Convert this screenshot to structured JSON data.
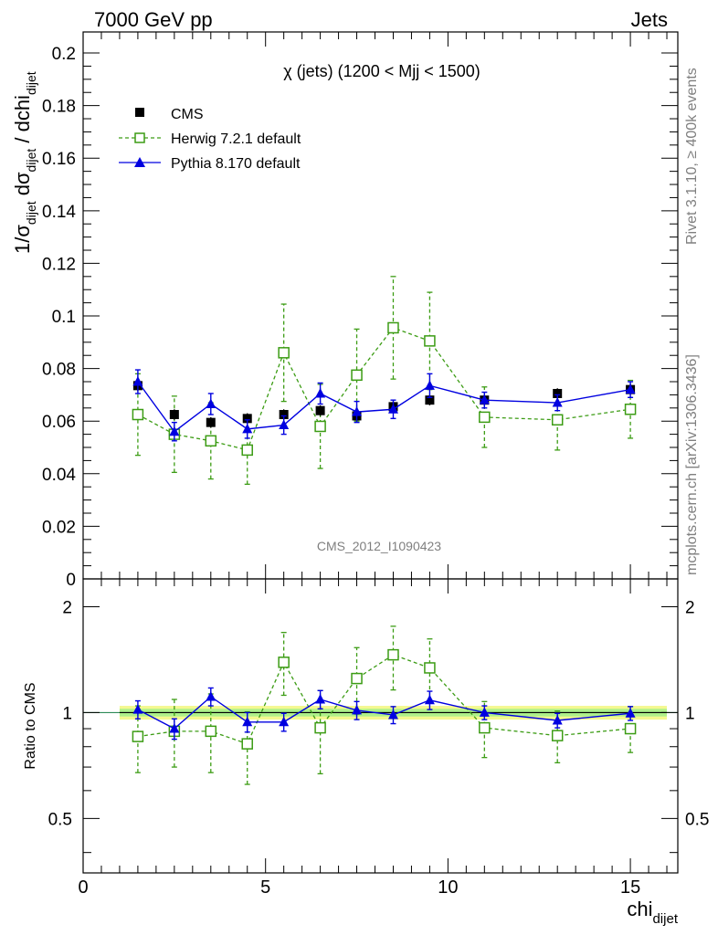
{
  "header": {
    "left": "7000 GeV pp",
    "right": "Jets"
  },
  "side_labels": {
    "rivet": "Rivet 3.1.10, ≥ 400k events",
    "mcplots": "mcplots.cern.ch [arXiv:1306.3436]"
  },
  "analysis_label": "CMS_2012_I1090423",
  "colors": {
    "data": "#000000",
    "herwig": "#3c9c14",
    "pythia": "#0000e0",
    "band_outer": "#f4f890",
    "band_inner": "#aef08a",
    "ref_line": "#2e8b57"
  },
  "chart_data": [
    {
      "panel": "main",
      "type": "scatter",
      "title": "χ (jets) (1200 < Mjj < 1500)",
      "ylabel": {
        "pre": "1/σ",
        "sub1": "dijet",
        "mid": " dσ",
        "sub2": "dijet",
        "post": " / dchi",
        "sub3": "dijet"
      },
      "xlim": [
        0,
        16.3
      ],
      "ylim": [
        0,
        0.208
      ],
      "yticks": [
        "0",
        "0.02",
        "0.04",
        "0.06",
        "0.08",
        "0.1",
        "0.12",
        "0.14",
        "0.16",
        "0.18",
        "0.2"
      ],
      "ytick_values": [
        0,
        0.02,
        0.04,
        0.06,
        0.08,
        0.1,
        0.12,
        0.14,
        0.16,
        0.18,
        0.2
      ],
      "legend": {
        "position": "top-left",
        "entries": [
          "CMS",
          "Herwig 7.2.1 default",
          "Pythia 8.170 default"
        ]
      },
      "series": [
        {
          "name": "CMS",
          "x": [
            1.5,
            2.5,
            3.5,
            4.5,
            5.5,
            6.5,
            7.5,
            8.5,
            9.5,
            11,
            13,
            15
          ],
          "y": [
            0.0735,
            0.0625,
            0.0595,
            0.061,
            0.0625,
            0.064,
            0.062,
            0.0655,
            0.068,
            0.068,
            0.0705,
            0.072
          ],
          "err": [
            0.002,
            0.002,
            0.002,
            0.002,
            0.002,
            0.002,
            0.002,
            0.002,
            0.002,
            0.002,
            0.002,
            0.002
          ]
        },
        {
          "name": "Herwig 7.2.1 default",
          "x": [
            1.5,
            2.5,
            3.5,
            4.5,
            5.5,
            6.5,
            7.5,
            8.5,
            9.5,
            11,
            13,
            15
          ],
          "y": [
            0.0625,
            0.055,
            0.0525,
            0.049,
            0.086,
            0.058,
            0.0775,
            0.0955,
            0.0905,
            0.0615,
            0.0605,
            0.0645
          ],
          "err": [
            0.0155,
            0.0145,
            0.0145,
            0.013,
            0.0185,
            0.016,
            0.0175,
            0.0195,
            0.0185,
            0.0115,
            0.0115,
            0.011
          ]
        },
        {
          "name": "Pythia 8.170 default",
          "x": [
            1.5,
            2.5,
            3.5,
            4.5,
            5.5,
            6.5,
            7.5,
            8.5,
            9.5,
            11,
            13,
            15
          ],
          "y": [
            0.075,
            0.056,
            0.0665,
            0.057,
            0.0585,
            0.0705,
            0.0635,
            0.0645,
            0.0735,
            0.068,
            0.067,
            0.072
          ],
          "err": [
            0.0045,
            0.0035,
            0.004,
            0.0035,
            0.0035,
            0.004,
            0.004,
            0.0035,
            0.0045,
            0.003,
            0.003,
            0.003
          ]
        }
      ]
    },
    {
      "panel": "ratio",
      "type": "scatter",
      "ylabel": "Ratio to CMS",
      "xlabel": {
        "main": "chi",
        "sub": "dijet"
      },
      "log_y": true,
      "xlim": [
        0,
        16.3
      ],
      "ylim": [
        0.35,
        2.4
      ],
      "xticks": [
        "0",
        "5",
        "10",
        "15"
      ],
      "xtick_values": [
        0,
        5,
        10,
        15
      ],
      "yticks": [
        "0.5",
        "1",
        "2"
      ],
      "ytick_values": [
        0.5,
        1,
        2
      ],
      "band": {
        "x": [
          1,
          16
        ],
        "outer": [
          0.955,
          1.045
        ],
        "inner": [
          0.975,
          1.025
        ]
      },
      "series": [
        {
          "name": "Herwig 7.2.1 default",
          "x": [
            1.5,
            2.5,
            3.5,
            4.5,
            5.5,
            6.5,
            7.5,
            8.5,
            9.5,
            11,
            13,
            15
          ],
          "y": [
            0.855,
            0.885,
            0.885,
            0.815,
            1.39,
            0.905,
            1.25,
            1.46,
            1.34,
            0.905,
            0.86,
            0.9
          ],
          "err_lo": [
            0.18,
            0.185,
            0.21,
            0.19,
            0.27,
            0.235,
            0.26,
            0.3,
            0.27,
            0.16,
            0.14,
            0.13
          ],
          "err_hi": [
            0.19,
            0.205,
            0.245,
            0.19,
            0.3,
            0.25,
            0.28,
            0.3,
            0.28,
            0.17,
            0.15,
            0.14
          ]
        },
        {
          "name": "Pythia 8.170 default",
          "x": [
            1.5,
            2.5,
            3.5,
            4.5,
            5.5,
            6.5,
            7.5,
            8.5,
            9.5,
            11,
            13,
            15
          ],
          "y": [
            1.02,
            0.9,
            1.11,
            0.94,
            0.94,
            1.09,
            1.015,
            0.985,
            1.085,
            1.0,
            0.95,
            0.995
          ],
          "err": [
            0.06,
            0.06,
            0.065,
            0.06,
            0.055,
            0.065,
            0.06,
            0.055,
            0.065,
            0.045,
            0.045,
            0.045
          ]
        }
      ]
    }
  ]
}
